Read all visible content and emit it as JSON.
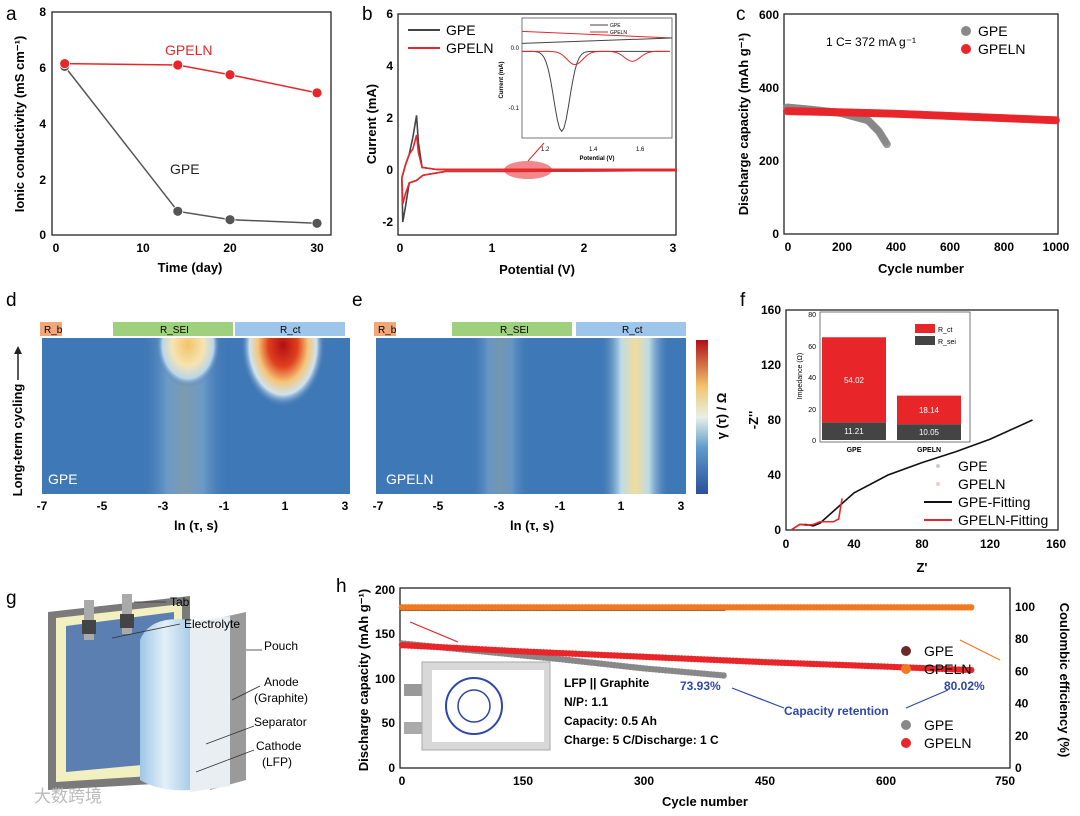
{
  "panels": {
    "a": "a",
    "b": "b",
    "c": "c",
    "d": "d",
    "e": "e",
    "f": "f",
    "g": "g",
    "h": "h"
  },
  "colors": {
    "gpe": "#555555",
    "gpeln": "#e8262a",
    "blue_text": "#2e47a8"
  },
  "chart_data": [
    {
      "id": "a",
      "type": "line",
      "xlabel": "Time (day)",
      "ylabel": "Ionic conductivity (mS cm⁻¹)",
      "xlim": [
        0,
        30
      ],
      "ylim": [
        0,
        8
      ],
      "xticks": [
        "0",
        "10",
        "20",
        "30"
      ],
      "yticks": [
        "0",
        "2",
        "4",
        "6",
        "8"
      ],
      "annotations": [
        "GPELN",
        "GPE"
      ],
      "series": [
        {
          "name": "GPE",
          "x": [
            1,
            14,
            20,
            30
          ],
          "y": [
            6.05,
            0.85,
            0.55,
            0.42
          ]
        },
        {
          "name": "GPELN",
          "x": [
            1,
            14,
            20,
            30
          ],
          "y": [
            6.15,
            6.1,
            5.75,
            5.1
          ]
        }
      ]
    },
    {
      "id": "b",
      "type": "line",
      "xlabel": "Potential (V)",
      "ylabel": "Current (mA)",
      "xlim": [
        0,
        3
      ],
      "ylim": [
        -2.5,
        6
      ],
      "xticks": [
        "0",
        "1",
        "2",
        "3"
      ],
      "yticks": [
        "-2",
        "0",
        "2",
        "4",
        "6"
      ],
      "legend": [
        "GPE",
        "GPELN"
      ],
      "inset": {
        "xlabel": "Potential (V)",
        "ylabel": "Current (mA)",
        "xticks": [
          "1.2",
          "1.4",
          "1.6"
        ],
        "yticks": [
          "0.0",
          "-0.1"
        ],
        "legend": [
          "GPE",
          "GPELN"
        ],
        "gpe_peak": {
          "x": 1.28,
          "y": -0.12
        },
        "gpeln_peaks": [
          {
            "x": 1.34,
            "y": -0.03
          },
          {
            "x": 1.6,
            "y": -0.025
          }
        ]
      },
      "series": [
        {
          "name": "GPE",
          "peak_anodic": 2.1,
          "peak_cathodic": -2.0
        },
        {
          "name": "GPELN",
          "peak_anodic": 1.35,
          "peak_cathodic": -1.3
        }
      ]
    },
    {
      "id": "c",
      "type": "scatter",
      "xlabel": "Cycle number",
      "ylabel": "Discharge capacity (mAh g⁻¹)",
      "xlim": [
        0,
        1000
      ],
      "ylim": [
        0,
        600
      ],
      "xticks": [
        "0",
        "200",
        "400",
        "600",
        "800",
        "1000"
      ],
      "yticks": [
        "0",
        "200",
        "400",
        "600"
      ],
      "legend": [
        "GPE",
        "GPELN"
      ],
      "annotation": "1 C= 372 mA g⁻¹",
      "series": [
        {
          "name": "GPE",
          "x": [
            0,
            100,
            200,
            300,
            340,
            370
          ],
          "y": [
            345,
            338,
            330,
            310,
            280,
            245
          ]
        },
        {
          "name": "GPELN",
          "x": [
            0,
            200,
            400,
            600,
            800,
            1000
          ],
          "y": [
            335,
            332,
            328,
            322,
            316,
            310
          ]
        }
      ]
    },
    {
      "id": "d",
      "type": "heatmap",
      "xlabel": "ln (τ, s)",
      "ylabel": "Long-term cycling",
      "label": "GPE",
      "regions": [
        "R_b",
        "R_SEI",
        "R_ct"
      ],
      "xticks": [
        "-7",
        "-5",
        "-3",
        "-1",
        "1",
        "3"
      ]
    },
    {
      "id": "e",
      "type": "heatmap",
      "xlabel": "ln (τ, s)",
      "label": "GPELN",
      "regions": [
        "R_b",
        "R_SEI",
        "R_ct"
      ],
      "xticks": [
        "-7",
        "-5",
        "-3",
        "-1",
        "1",
        "3"
      ],
      "colorbar_label": "γ (τ) / Ω"
    },
    {
      "id": "f",
      "type": "line",
      "xlabel": "Z'",
      "ylabel": "-Z''",
      "xlim": [
        0,
        160
      ],
      "ylim": [
        0,
        160
      ],
      "xticks": [
        "0",
        "40",
        "80",
        "120",
        "160"
      ],
      "yticks": [
        "0",
        "40",
        "80",
        "120",
        "160"
      ],
      "legend": [
        "GPE",
        "GPELN",
        "GPE-Fitting",
        "GPELN-Fitting"
      ],
      "series": [
        {
          "name": "GPE-Fitting",
          "x": [
            3,
            8,
            12,
            16,
            20,
            30,
            40,
            60,
            80,
            100,
            120,
            145
          ],
          "y": [
            0,
            4,
            4,
            3,
            5,
            16,
            27,
            40,
            49,
            57,
            66,
            80
          ]
        },
        {
          "name": "GPELN-Fitting",
          "x": [
            3,
            8,
            12,
            16,
            20,
            28,
            31,
            33
          ],
          "y": [
            0,
            4,
            3.5,
            4,
            6,
            6,
            8,
            23
          ]
        }
      ],
      "inset": {
        "type": "bar",
        "ylabel": "Impedance (Ω)",
        "ylim": [
          0,
          80
        ],
        "yticks": [
          "0",
          "20",
          "40",
          "60",
          "80"
        ],
        "categories": [
          "GPE",
          "GPELN"
        ],
        "legend": [
          "R_ct",
          "R_sei"
        ],
        "series": [
          {
            "name": "R_sei",
            "values": [
              11.21,
              10.05
            ],
            "labels": [
              "11.21",
              "10.05"
            ]
          },
          {
            "name": "R_ct",
            "values": [
              54.02,
              18.14
            ],
            "labels": [
              "54.02",
              "18.14"
            ]
          }
        ]
      }
    },
    {
      "id": "h",
      "type": "scatter",
      "xlabel": "Cycle number",
      "ylabel": "Discharge capacity (mAh g⁻¹)",
      "ylabel_right": "Coulombic efficiency (%)",
      "xlim": [
        0,
        750
      ],
      "ylim": [
        0,
        200
      ],
      "ylim_right": [
        0,
        120
      ],
      "xticks": [
        "0",
        "150",
        "300",
        "450",
        "600",
        "750"
      ],
      "yticks": [
        "0",
        "50",
        "100",
        "150",
        "200"
      ],
      "yticks_right": [
        "0",
        "20",
        "40",
        "60",
        "80",
        "100"
      ],
      "legend_top": [
        "GPE",
        "GPELN"
      ],
      "legend_bottom": [
        "GPE",
        "GPELN"
      ],
      "annotations": {
        "gpe_retention": "73.93%",
        "gpeln_retention": "80.02%",
        "retention_label": "Capacity retention"
      },
      "info": [
        "LFP || Graphite",
        "N/P: 1.1",
        "Capacity: 0.5 Ah",
        "Charge: 5 C/Discharge: 1 C"
      ],
      "series": [
        {
          "name": "GPE capacity",
          "x": [
            0,
            100,
            200,
            300,
            400
          ],
          "y": [
            140,
            131,
            122,
            112,
            104
          ]
        },
        {
          "name": "GPELN capacity",
          "x": [
            0,
            150,
            300,
            450,
            600,
            710
          ],
          "y": [
            138,
            131,
            125,
            119,
            114,
            110
          ]
        },
        {
          "name": "GPE CE",
          "x": [
            0,
            400
          ],
          "y": [
            99.5,
            99.5
          ]
        },
        {
          "name": "GPELN CE",
          "x": [
            0,
            710
          ],
          "y": [
            99.8,
            99.8
          ]
        }
      ]
    }
  ],
  "schematic": {
    "labels": [
      "Tab",
      "Electrolyte",
      "Pouch",
      "Anode",
      "(Graphite)",
      "Separator",
      "Cathode",
      "(LFP)"
    ]
  },
  "watermark": "大数跨境"
}
